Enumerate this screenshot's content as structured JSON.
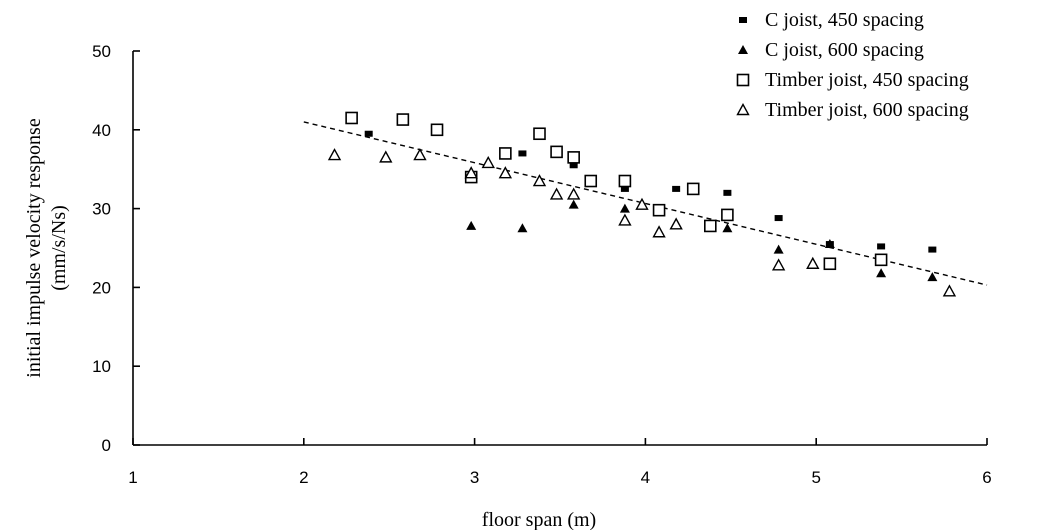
{
  "chart_data": {
    "type": "scatter",
    "xlabel": "floor span (m)",
    "ylabel_line1": "initial impulse velocity response",
    "ylabel_line2": "(mm/s/Ns)",
    "xlim": [
      1,
      6
    ],
    "ylim": [
      0,
      50
    ],
    "x_ticks": [
      1,
      2,
      3,
      4,
      5,
      6
    ],
    "y_ticks": [
      0,
      10,
      20,
      30,
      40,
      50
    ],
    "x_tick_labels": [
      "1",
      "2",
      "3",
      "4",
      "5",
      "6"
    ],
    "y_tick_labels": [
      "0",
      "10",
      "20",
      "30",
      "40",
      "50"
    ],
    "grid": false,
    "legend_position": "top-right",
    "series": [
      {
        "name": "C joist, 450 spacing",
        "marker": "filled-square",
        "points": [
          [
            2.38,
            39.5
          ],
          [
            3.28,
            37.0
          ],
          [
            3.58,
            35.5
          ],
          [
            3.88,
            32.5
          ],
          [
            4.18,
            32.5
          ],
          [
            4.48,
            32.0
          ],
          [
            4.78,
            28.8
          ],
          [
            5.08,
            25.5
          ],
          [
            5.38,
            25.2
          ],
          [
            5.68,
            24.8
          ]
        ]
      },
      {
        "name": "C joist, 600 spacing",
        "marker": "filled-triangle",
        "points": [
          [
            2.98,
            27.8
          ],
          [
            3.28,
            27.5
          ],
          [
            3.58,
            30.5
          ],
          [
            3.88,
            30.0
          ],
          [
            4.48,
            27.5
          ],
          [
            4.78,
            24.8
          ],
          [
            5.08,
            25.5
          ],
          [
            5.38,
            21.8
          ],
          [
            5.68,
            21.3
          ]
        ]
      },
      {
        "name": "Timber joist, 450 spacing",
        "marker": "open-square",
        "points": [
          [
            2.28,
            41.5
          ],
          [
            2.58,
            41.3
          ],
          [
            2.78,
            40.0
          ],
          [
            2.98,
            34.0
          ],
          [
            3.18,
            37.0
          ],
          [
            3.38,
            39.5
          ],
          [
            3.48,
            37.2
          ],
          [
            3.58,
            36.5
          ],
          [
            3.68,
            33.5
          ],
          [
            3.88,
            33.5
          ],
          [
            4.08,
            29.8
          ],
          [
            4.28,
            32.5
          ],
          [
            4.38,
            27.8
          ],
          [
            4.48,
            29.2
          ],
          [
            5.08,
            23.0
          ],
          [
            5.38,
            23.5
          ]
        ]
      },
      {
        "name": "Timber joist, 600 spacing",
        "marker": "open-triangle",
        "points": [
          [
            2.18,
            36.8
          ],
          [
            2.48,
            36.5
          ],
          [
            2.68,
            36.8
          ],
          [
            2.98,
            34.5
          ],
          [
            3.08,
            35.8
          ],
          [
            3.18,
            34.5
          ],
          [
            3.38,
            33.5
          ],
          [
            3.48,
            31.8
          ],
          [
            3.58,
            31.8
          ],
          [
            3.88,
            28.5
          ],
          [
            3.98,
            30.5
          ],
          [
            4.08,
            27.0
          ],
          [
            4.18,
            28.0
          ],
          [
            4.78,
            22.8
          ],
          [
            4.98,
            23.0
          ],
          [
            5.78,
            19.5
          ]
        ]
      }
    ],
    "trend_line": [
      [
        2.0,
        41.0
      ],
      [
        6.0,
        20.3
      ]
    ]
  }
}
